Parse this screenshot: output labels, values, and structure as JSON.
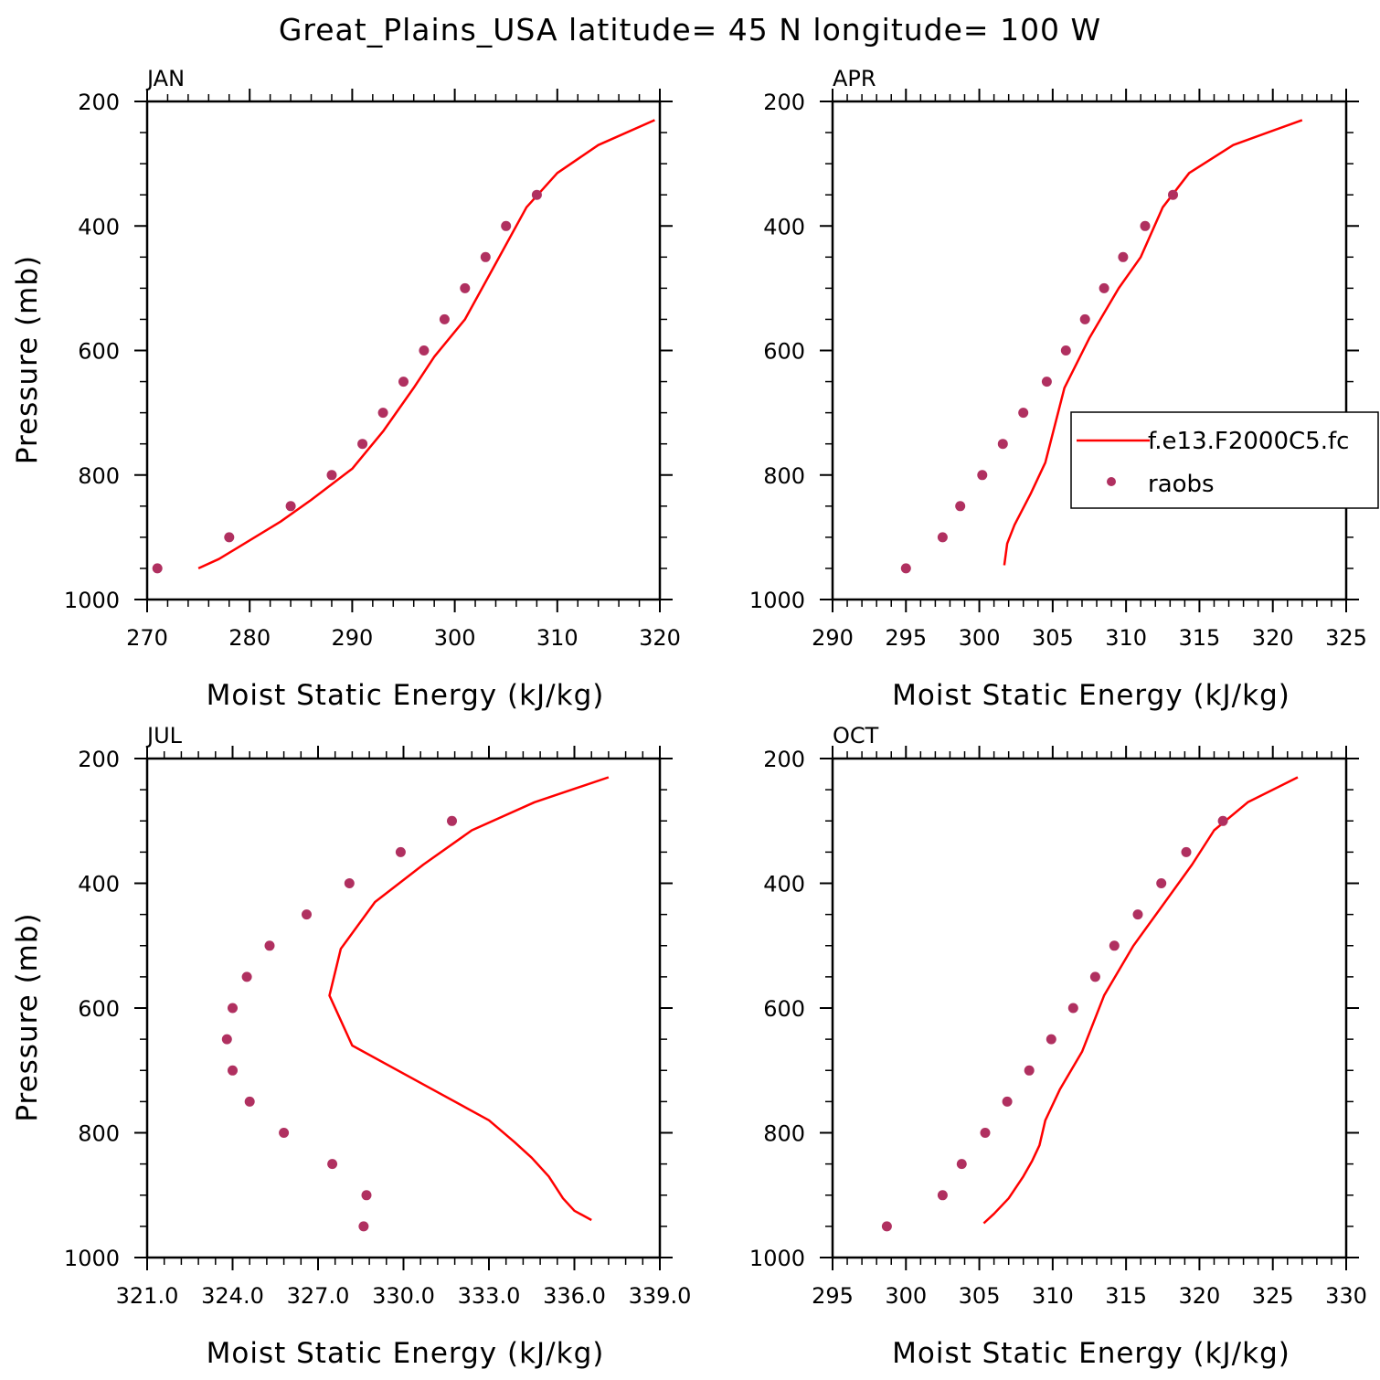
{
  "title": "Great_Plains_USA  latitude= 45 N longitude= 100 W",
  "colors": {
    "model": "#ff0000",
    "obs": "#b03060",
    "axis": "#000000"
  },
  "legend": {
    "model_label": "f.e13.F2000C5.fc",
    "obs_label": "raobs"
  },
  "chart_data": [
    {
      "type": "line",
      "panel": "JAN",
      "xlabel": "Moist Static Energy (kJ/kg)",
      "ylabel": "Pressure (mb)",
      "xlim": [
        270,
        320
      ],
      "ylim": [
        1000,
        200
      ],
      "x_ticks": [
        270,
        280,
        290,
        300,
        310,
        320
      ],
      "x_tick_labels": [
        "270",
        "280",
        "290",
        "300",
        "310",
        "320"
      ],
      "y_ticks": [
        200,
        400,
        600,
        800,
        1000
      ],
      "y_tick_labels": [
        "200",
        "400",
        "600",
        "800",
        "1000"
      ],
      "series": [
        {
          "name": "f.e13.F2000C5.fc",
          "kind": "line",
          "points": [
            [
              275,
              950
            ],
            [
              277,
              935
            ],
            [
              283,
              875
            ],
            [
              286,
              840
            ],
            [
              290,
              790
            ],
            [
              293,
              730
            ],
            [
              296,
              660
            ],
            [
              298,
              610
            ],
            [
              301,
              550
            ],
            [
              304,
              460
            ],
            [
              307,
              370
            ],
            [
              310,
              315
            ],
            [
              314,
              270
            ],
            [
              319.5,
              230
            ]
          ]
        },
        {
          "name": "raobs",
          "kind": "scatter",
          "points": [
            [
              271,
              950
            ],
            [
              278,
              900
            ],
            [
              284,
              850
            ],
            [
              288,
              800
            ],
            [
              291,
              750
            ],
            [
              293,
              700
            ],
            [
              295,
              650
            ],
            [
              297,
              600
            ],
            [
              299,
              550
            ],
            [
              301,
              500
            ],
            [
              303,
              450
            ],
            [
              305,
              400
            ],
            [
              308,
              350
            ]
          ]
        }
      ]
    },
    {
      "type": "line",
      "panel": "APR",
      "xlabel": "Moist Static Energy (kJ/kg)",
      "ylabel": "",
      "xlim": [
        290,
        325
      ],
      "ylim": [
        1000,
        200
      ],
      "x_ticks": [
        290,
        295,
        300,
        305,
        310,
        315,
        320,
        325
      ],
      "x_tick_labels": [
        "290",
        "295",
        "300",
        "305",
        "310",
        "315",
        "320",
        "325"
      ],
      "y_ticks": [
        200,
        400,
        600,
        800,
        1000
      ],
      "y_tick_labels": [
        "200",
        "400",
        "600",
        "800",
        "1000"
      ],
      "series": [
        {
          "name": "f.e13.F2000C5.fc",
          "kind": "line",
          "points": [
            [
              301.7,
              945
            ],
            [
              301.9,
              910
            ],
            [
              302.4,
              880
            ],
            [
              303.5,
              830
            ],
            [
              304.5,
              780
            ],
            [
              305.8,
              660
            ],
            [
              307.5,
              580
            ],
            [
              309.5,
              500
            ],
            [
              311,
              450
            ],
            [
              312.5,
              370
            ],
            [
              314.3,
              315
            ],
            [
              317.3,
              270
            ],
            [
              322,
              230
            ]
          ]
        },
        {
          "name": "raobs",
          "kind": "scatter",
          "points": [
            [
              295,
              950
            ],
            [
              297.5,
              900
            ],
            [
              298.7,
              850
            ],
            [
              300.2,
              800
            ],
            [
              301.6,
              750
            ],
            [
              303,
              700
            ],
            [
              304.6,
              650
            ],
            [
              305.9,
              600
            ],
            [
              307.2,
              550
            ],
            [
              308.5,
              500
            ],
            [
              309.8,
              450
            ],
            [
              311.3,
              400
            ],
            [
              313.2,
              350
            ]
          ]
        }
      ]
    },
    {
      "type": "line",
      "panel": "JUL",
      "xlabel": "Moist Static Energy (kJ/kg)",
      "ylabel": "Pressure (mb)",
      "xlim": [
        321,
        339
      ],
      "ylim": [
        1000,
        200
      ],
      "x_ticks": [
        321,
        324,
        327,
        330,
        333,
        336,
        339
      ],
      "x_tick_labels": [
        "321.0",
        "324.0",
        "327.0",
        "330.0",
        "333.0",
        "336.0",
        "339.0"
      ],
      "y_ticks": [
        200,
        400,
        600,
        800,
        1000
      ],
      "y_tick_labels": [
        "200",
        "400",
        "600",
        "800",
        "1000"
      ],
      "series": [
        {
          "name": "f.e13.F2000C5.fc",
          "kind": "line",
          "points": [
            [
              336.6,
              940
            ],
            [
              336,
              925
            ],
            [
              335.6,
              905
            ],
            [
              335.1,
              870
            ],
            [
              334.5,
              840
            ],
            [
              333.9,
              815
            ],
            [
              333,
              780
            ],
            [
              330.8,
              725
            ],
            [
              328.2,
              660
            ],
            [
              327.4,
              580
            ],
            [
              327.8,
              505
            ],
            [
              329,
              430
            ],
            [
              330.7,
              370
            ],
            [
              332.4,
              315
            ],
            [
              334.6,
              270
            ],
            [
              337.2,
              230
            ]
          ]
        },
        {
          "name": "raobs",
          "kind": "scatter",
          "points": [
            [
              328.6,
              950
            ],
            [
              328.7,
              900
            ],
            [
              327.5,
              850
            ],
            [
              325.8,
              800
            ],
            [
              324.6,
              750
            ],
            [
              324,
              700
            ],
            [
              323.8,
              650
            ],
            [
              324,
              600
            ],
            [
              324.5,
              550
            ],
            [
              325.3,
              500
            ],
            [
              326.6,
              450
            ],
            [
              328.1,
              400
            ],
            [
              329.9,
              350
            ],
            [
              331.7,
              300
            ]
          ]
        }
      ]
    },
    {
      "type": "line",
      "panel": "OCT",
      "xlabel": "Moist Static Energy (kJ/kg)",
      "ylabel": "",
      "xlim": [
        295,
        330
      ],
      "ylim": [
        1000,
        200
      ],
      "x_ticks": [
        295,
        300,
        305,
        310,
        315,
        320,
        325,
        330
      ],
      "x_tick_labels": [
        "295",
        "300",
        "305",
        "310",
        "315",
        "320",
        "325",
        "330"
      ],
      "y_ticks": [
        200,
        400,
        600,
        800,
        1000
      ],
      "y_tick_labels": [
        "200",
        "400",
        "600",
        "800",
        "1000"
      ],
      "series": [
        {
          "name": "f.e13.F2000C5.fc",
          "kind": "line",
          "points": [
            [
              305.3,
              945
            ],
            [
              306,
              930
            ],
            [
              307,
              905
            ],
            [
              308,
              870
            ],
            [
              308.6,
              845
            ],
            [
              309.1,
              820
            ],
            [
              309.5,
              780
            ],
            [
              310.5,
              730
            ],
            [
              312,
              670
            ],
            [
              313.5,
              580
            ],
            [
              315.5,
              500
            ],
            [
              319.5,
              370
            ],
            [
              321,
              315
            ],
            [
              323.3,
              270
            ],
            [
              326.7,
              230
            ]
          ]
        },
        {
          "name": "raobs",
          "kind": "scatter",
          "points": [
            [
              298.7,
              950
            ],
            [
              302.5,
              900
            ],
            [
              303.8,
              850
            ],
            [
              305.4,
              800
            ],
            [
              306.9,
              750
            ],
            [
              308.4,
              700
            ],
            [
              309.9,
              650
            ],
            [
              311.4,
              600
            ],
            [
              312.9,
              550
            ],
            [
              314.2,
              500
            ],
            [
              315.8,
              450
            ],
            [
              317.4,
              400
            ],
            [
              319.1,
              350
            ],
            [
              321.6,
              300
            ]
          ]
        }
      ]
    }
  ]
}
